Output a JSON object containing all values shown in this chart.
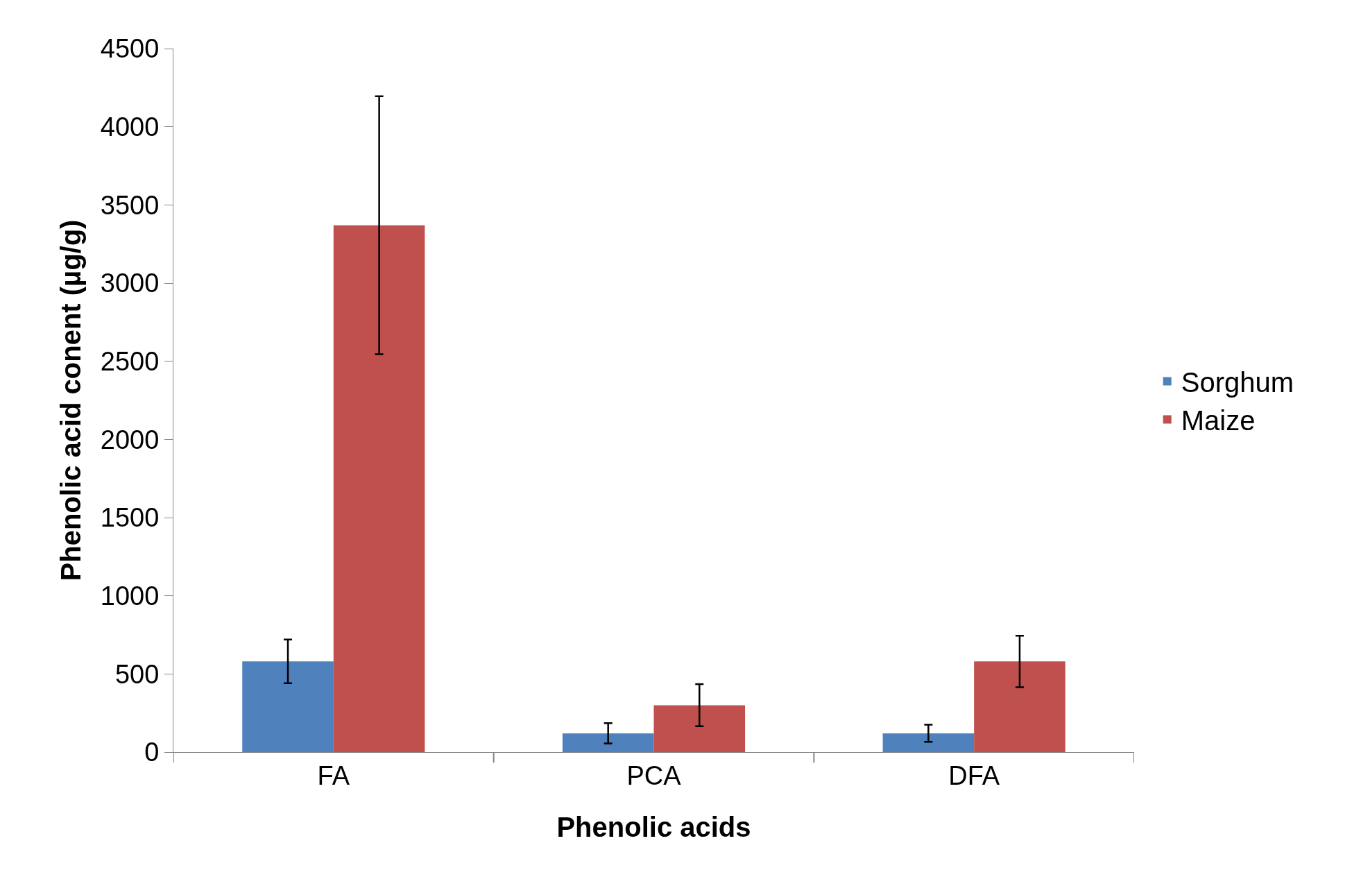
{
  "chart_data": {
    "type": "bar",
    "xlabel": "Phenolic acids",
    "ylabel": "Phenolic acid conent (µg/g)",
    "categories": [
      "FA",
      "PCA",
      "DFA"
    ],
    "series": [
      {
        "name": "Sorghum",
        "color": "#4f81bd",
        "values": [
          580,
          120,
          120
        ],
        "errors": [
          140,
          65,
          55
        ]
      },
      {
        "name": "Maize",
        "color": "#c0504d",
        "values": [
          3370,
          300,
          580
        ],
        "errors": [
          825,
          135,
          165
        ]
      }
    ],
    "ylim": [
      0,
      4500
    ],
    "yticks": [
      0,
      500,
      1000,
      1500,
      2000,
      2500,
      3000,
      3500,
      4000,
      4500
    ],
    "legend": "right"
  }
}
